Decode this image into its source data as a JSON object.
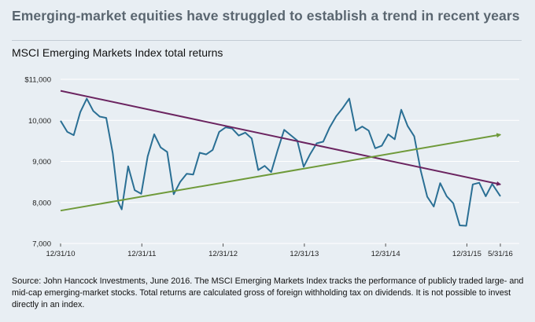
{
  "headline": "Emerging-market equities have struggled to establish a trend in recent years",
  "source": "Source: John Hancock Investments, June 2016. The MSCI Emerging Markets Index tracks the performance of publicly traded large- and mid-cap emerging-market stocks. Total returns are calculated gross of foreign withholding tax on dividends. It is not possible to invest directly in an index.",
  "colors": {
    "background": "#e8eef3",
    "series": "#2a6f94",
    "downtrend": "#6b2460",
    "uptrend": "#6f9a3a"
  },
  "chart_data": {
    "type": "line",
    "title": "MSCI Emerging Markets Index total returns",
    "xlabel": "",
    "ylabel": "",
    "x_range": [
      2010.998,
      2016.42
    ],
    "ylim": [
      7000,
      11000
    ],
    "y_ticks": [
      {
        "value": 7000,
        "label": "7,000"
      },
      {
        "value": 8000,
        "label": "8,000"
      },
      {
        "value": 9000,
        "label": "9,000"
      },
      {
        "value": 10000,
        "label": "10,000"
      },
      {
        "value": 11000,
        "label": "$11,000"
      }
    ],
    "x_ticks": [
      {
        "value": 2010.998,
        "label": "12/31/10"
      },
      {
        "value": 2011.998,
        "label": "12/31/11"
      },
      {
        "value": 2012.998,
        "label": "12/31/12"
      },
      {
        "value": 2013.998,
        "label": "12/31/13"
      },
      {
        "value": 2014.998,
        "label": "12/31/14"
      },
      {
        "value": 2015.998,
        "label": "12/31/15"
      },
      {
        "value": 2016.41,
        "label": "5/31/16"
      }
    ],
    "series": [
      {
        "name": "MSCI Emerging Markets Index total returns",
        "x": [
          2010.998,
          2011.08,
          2011.16,
          2011.24,
          2011.32,
          2011.4,
          2011.48,
          2011.56,
          2011.64,
          2011.71,
          2011.75,
          2011.83,
          2011.91,
          2011.99,
          2012.07,
          2012.15,
          2012.23,
          2012.31,
          2012.39,
          2012.47,
          2012.55,
          2012.63,
          2012.71,
          2012.79,
          2012.87,
          2012.95,
          2013.03,
          2013.11,
          2013.19,
          2013.27,
          2013.35,
          2013.43,
          2013.51,
          2013.59,
          2013.67,
          2013.75,
          2013.83,
          2013.91,
          2013.99,
          2014.07,
          2014.15,
          2014.23,
          2014.31,
          2014.39,
          2014.47,
          2014.55,
          2014.63,
          2014.71,
          2014.79,
          2014.87,
          2014.95,
          2015.03,
          2015.11,
          2015.19,
          2015.27,
          2015.35,
          2015.43,
          2015.51,
          2015.59,
          2015.67,
          2015.75,
          2015.83,
          2015.91,
          2015.99,
          2016.07,
          2016.15,
          2016.23,
          2016.31,
          2016.41
        ],
        "values": [
          9990,
          9720,
          9640,
          10200,
          10530,
          10230,
          10090,
          10060,
          9200,
          8000,
          7830,
          8880,
          8300,
          8210,
          9120,
          9660,
          9340,
          9230,
          8200,
          8500,
          8700,
          8680,
          9210,
          9170,
          9280,
          9720,
          9830,
          9800,
          9630,
          9700,
          9560,
          8790,
          8890,
          8740,
          9280,
          9770,
          9640,
          9510,
          8870,
          9180,
          9440,
          9480,
          9830,
          10100,
          10300,
          10530,
          9750,
          9850,
          9750,
          9320,
          9380,
          9660,
          9540,
          10260,
          9860,
          9610,
          8780,
          8140,
          7900,
          8470,
          8150,
          7980,
          7440,
          7430,
          8440,
          8480,
          8150,
          8450,
          8150
        ]
      },
      {
        "name": "Downward trend line",
        "x": [
          2010.998,
          2016.41
        ],
        "values": [
          10720,
          8440
        ]
      },
      {
        "name": "Upward trend line",
        "x": [
          2010.998,
          2016.41
        ],
        "values": [
          7800,
          9650
        ]
      }
    ]
  }
}
